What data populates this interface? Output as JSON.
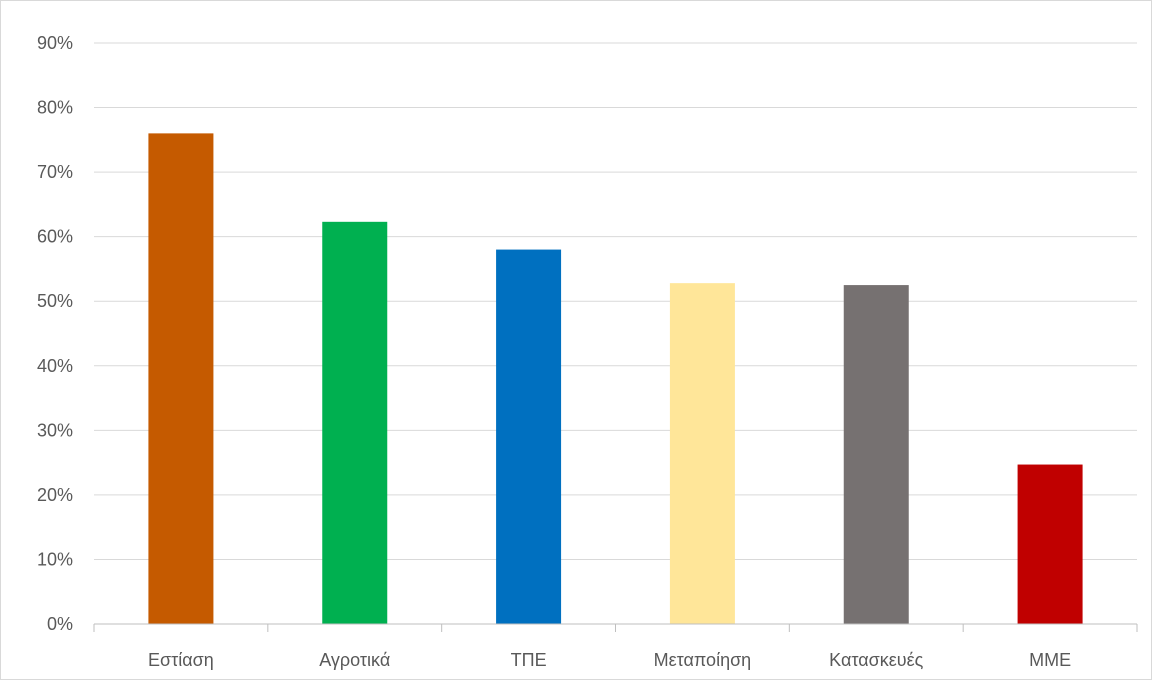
{
  "chart_data": {
    "type": "bar",
    "categories": [
      "Εστίαση",
      "Αγροτικά",
      "ΤΠΕ",
      "Μεταποίηση",
      "Κατασκευές",
      "ΜΜΕ"
    ],
    "values": [
      76,
      62.3,
      58,
      52.8,
      52.5,
      24.7
    ],
    "colors": [
      "#c55a00",
      "#00b050",
      "#0070c0",
      "#ffe699",
      "#767171",
      "#c00000"
    ],
    "ylim": [
      0,
      90
    ],
    "yticks": [
      0,
      10,
      20,
      30,
      40,
      50,
      60,
      70,
      80,
      90
    ],
    "ytick_format": "percent",
    "grid": true,
    "legend": "none",
    "title": "",
    "xlabel": "",
    "ylabel": ""
  }
}
